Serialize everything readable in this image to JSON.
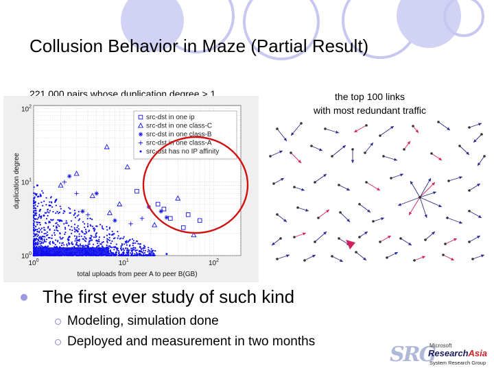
{
  "slide": {
    "title": "Collusion Behavior in Maze (Partial Result)",
    "caption_left": "221,000 pairs whose duplication degree > 1",
    "caption_right_line1": "the top 100 links",
    "caption_right_line2": "with most redundant traffic",
    "bullets": [
      {
        "text": "The first ever study of such kind",
        "subs": [
          "Modeling, simulation done",
          "Deployed and measurement in two months"
        ]
      }
    ]
  },
  "logo": {
    "mark": "SRG",
    "microsoft": "Microsoft",
    "research": "Research",
    "asia": "Asia",
    "group": "System Research Group"
  },
  "colors": {
    "accent_circle": "#c7c7ef",
    "highlight_circle": "#d01010",
    "points": "#1010ee",
    "link_pink": "#d02060"
  },
  "chart_data": {
    "type": "scatter",
    "xlabel": "total uploads from peer A to peer B(GB)",
    "ylabel": "duplication degree",
    "x_scale": "log",
    "y_scale": "log",
    "xlim": [
      1,
      200
    ],
    "ylim": [
      1,
      110
    ],
    "x_ticks": [
      {
        "base": "10",
        "exp": "0",
        "value": 1
      },
      {
        "base": "10",
        "exp": "1",
        "value": 10
      },
      {
        "base": "10",
        "exp": "2",
        "value": 100
      }
    ],
    "y_ticks": [
      {
        "base": "10",
        "exp": "0",
        "value": 1
      },
      {
        "base": "10",
        "exp": "1",
        "value": 10
      },
      {
        "base": "10",
        "exp": "2",
        "value": 100
      }
    ],
    "grid": true,
    "legend_position": "top-right",
    "series": [
      {
        "name": "src-dst in one ip",
        "marker": "square",
        "points": [
          [
            28,
            4.3
          ],
          [
            33,
            3.2
          ],
          [
            46,
            2.4
          ],
          [
            52,
            3.6
          ],
          [
            24,
            5.0
          ],
          [
            14,
            7.5
          ],
          [
            70,
            3.0
          ]
        ]
      },
      {
        "name": "src-dst in one class-C",
        "marker": "triangle",
        "points": [
          [
            6.5,
            30
          ],
          [
            11,
            16
          ],
          [
            3.0,
            13
          ],
          [
            40,
            6.0
          ],
          [
            60,
            1.9
          ],
          [
            22,
            2.6
          ],
          [
            2.0,
            9.0
          ],
          [
            4.5,
            6.5
          ],
          [
            9.0,
            5.0
          ],
          [
            7.0,
            3.8
          ]
        ]
      },
      {
        "name": "src-dst in one class-B",
        "marker": "star",
        "points": [
          [
            26,
            4.0
          ],
          [
            30,
            3.3
          ],
          [
            19,
            4.6
          ],
          [
            2.5,
            12
          ],
          [
            5.0,
            7.0
          ],
          [
            8.0,
            3.0
          ],
          [
            3.5,
            4.0
          ]
        ]
      },
      {
        "name": "src-dst in one class-A",
        "marker": "plus",
        "points": [
          [
            2.2,
            10
          ],
          [
            3.0,
            7.0
          ],
          [
            12,
            2.7
          ],
          [
            16,
            3.2
          ],
          [
            4.0,
            3.6
          ]
        ]
      },
      {
        "name": "src-dst has no IP affinity",
        "marker": "dot",
        "points": [
          [
            1.2,
            6.5
          ],
          [
            1.5,
            4.8
          ],
          [
            2.0,
            3.0
          ],
          [
            3.0,
            2.2
          ],
          [
            5.0,
            1.6
          ],
          [
            8.0,
            1.3
          ],
          [
            15,
            1.15
          ],
          [
            30,
            1.05
          ],
          [
            1.1,
            9.0
          ],
          [
            1.3,
            3.5
          ],
          [
            1.8,
            2.4
          ],
          [
            2.5,
            1.8
          ],
          [
            4.0,
            1.35
          ],
          [
            6.0,
            1.2
          ],
          [
            10,
            1.08
          ]
        ]
      }
    ]
  }
}
